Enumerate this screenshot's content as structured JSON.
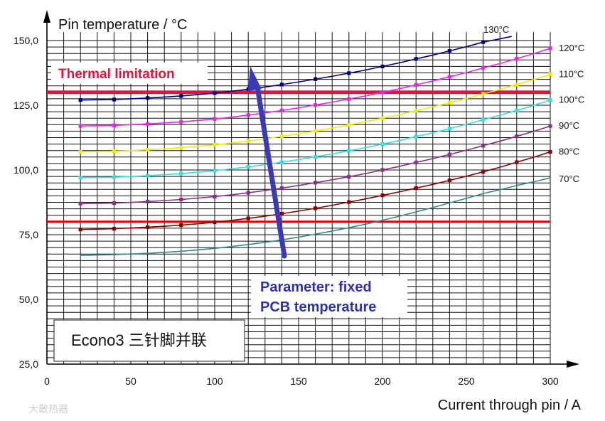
{
  "chart_data": {
    "type": "line",
    "ylabel": "Pin temperature / °C",
    "xlabel": "Current through pin / A",
    "xlim": [
      0,
      300
    ],
    "ylim": [
      25,
      150
    ],
    "x_ticks": [
      0,
      50,
      100,
      150,
      200,
      250,
      300
    ],
    "y_ticks": [
      "25,0",
      "50,0",
      "75,0",
      "100,0",
      "125,0",
      "150,0"
    ],
    "y_tick_values": [
      25,
      50,
      75,
      100,
      125,
      150
    ],
    "grid": true,
    "x": [
      20,
      40,
      60,
      80,
      100,
      120,
      140,
      160,
      180,
      200,
      220,
      240,
      260,
      280,
      300
    ],
    "series": [
      {
        "name": "70°C",
        "color": "#2e8b8b",
        "markers": false,
        "values": [
          67,
          67.3,
          67.8,
          68.6,
          69.7,
          71.2,
          73,
          75.2,
          77.7,
          80.6,
          83.8,
          87.3,
          90.9,
          94,
          97
        ]
      },
      {
        "name": "80°C",
        "color": "#8b0000",
        "markers": true,
        "values": [
          77,
          77.3,
          77.9,
          78.7,
          79.8,
          81.3,
          83.1,
          85.2,
          87.6,
          90.2,
          93,
          96,
          99.3,
          103,
          107
        ]
      },
      {
        "name": "90°C",
        "color": "#8b2d8b",
        "markers": true,
        "values": [
          87,
          87.2,
          87.8,
          88.6,
          89.7,
          91.2,
          93,
          95.1,
          97.4,
          100,
          102.9,
          106,
          109.4,
          113,
          117
        ]
      },
      {
        "name": "100°C",
        "color": "#33e0e0",
        "markers": true,
        "values": [
          97,
          97.2,
          97.8,
          98.6,
          99.7,
          101.2,
          103,
          105.1,
          107.4,
          110,
          112.9,
          116,
          119.4,
          123,
          127
        ]
      },
      {
        "name": "110°C",
        "color": "#f0f000",
        "markers": true,
        "values": [
          107,
          107.2,
          107.8,
          108.6,
          109.7,
          111.2,
          113,
          115.1,
          117.4,
          120,
          122.9,
          126,
          129.4,
          133,
          137
        ]
      },
      {
        "name": "120°C",
        "color": "#ee22ee",
        "markers": true,
        "values": [
          117,
          117.2,
          117.8,
          118.6,
          119.7,
          121.2,
          123,
          125.1,
          127.4,
          130,
          132.9,
          136,
          139.4,
          143,
          147
        ]
      },
      {
        "name": "130°C",
        "color": "#000080",
        "markers": true,
        "values": [
          127,
          127.2,
          127.8,
          128.6,
          129.7,
          131.2,
          133,
          135.1,
          137.4,
          140,
          142.9,
          146,
          149.4,
          null,
          null
        ]
      }
    ],
    "hlines": [
      {
        "y": 130,
        "color": "#e0143c"
      },
      {
        "y": 80,
        "color": "#e00000"
      }
    ],
    "annotations": {
      "thermal_limitation": "Thermal limitation",
      "parameter_line1": "Parameter: fixed",
      "parameter_line2": "PCB temperature",
      "econo_label": "Econo3 三针脚并联"
    },
    "colors": {
      "thermal": "#e0143c",
      "arrow": "#3a3ab8",
      "parameter_text": "#2f2fb0"
    }
  },
  "watermark": "大散热器"
}
